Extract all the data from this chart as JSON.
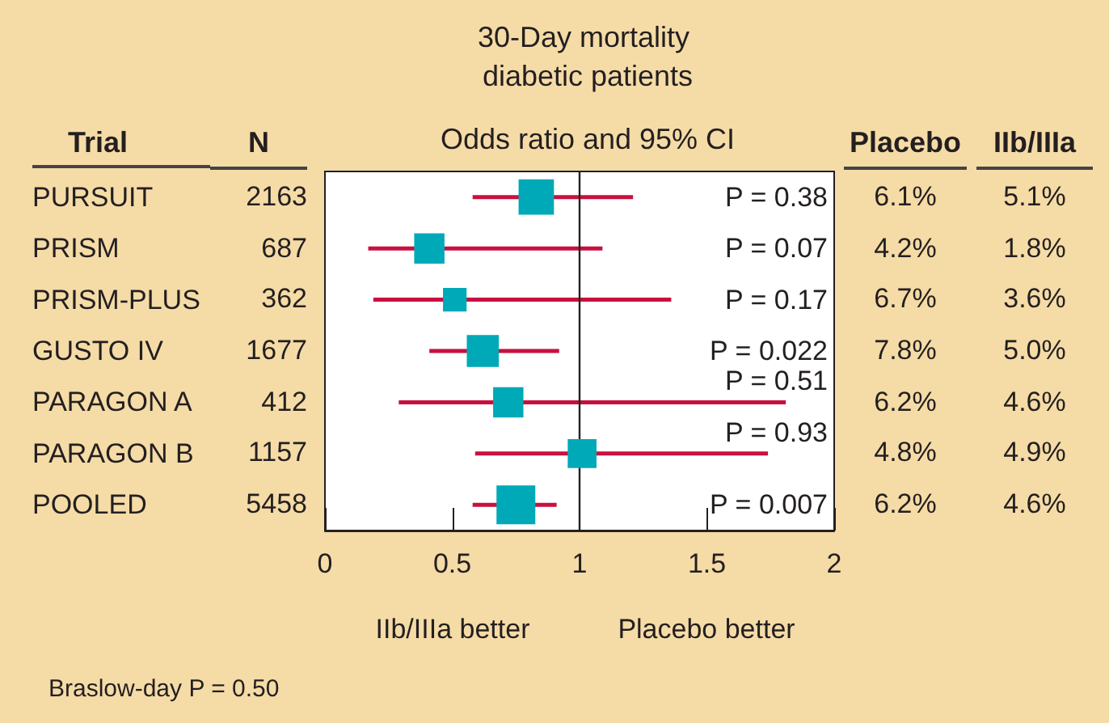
{
  "chart_data": [
    {
      "type": "bubble",
      "title": "30-Day mortality diabetic patients",
      "subtitle": "Odds ratio and 95% CI",
      "ylabel": "Trial",
      "orientation": "horizontal",
      "categories": [
        "PURSUIT",
        "PRISM",
        "PRISM-PLUS",
        "GUSTO IV",
        "PARAGON A",
        "PARAGON B",
        "POOLED"
      ],
      "series": [
        {
          "color": "#00a9b7",
          "values": [
            0.83,
            0.41,
            0.51,
            0.62,
            0.72,
            1.01,
            0.75
          ],
          "sizes": [
            0.83,
            0.61,
            0.37,
            0.68,
            0.61,
            0.55,
            1
          ],
          "errors": [
            [
              0.58,
              1.21
            ],
            [
              0.17,
              1.09
            ],
            [
              0.19,
              1.36
            ],
            [
              0.41,
              0.92
            ],
            [
              0.29,
              1.81
            ],
            [
              0.59,
              1.74
            ],
            [
              0.58,
              0.91
            ]
          ]
        }
      ],
      "marker": "square",
      "xlim": [
        0,
        2
      ],
      "xticks": [
        0,
        0.5,
        1,
        1.5,
        2
      ],
      "grid": false,
      "ref_lines": [
        {
          "axis": "x",
          "value": 1,
          "color": "#222222"
        }
      ],
      "annotations": [
        "P = 0.38",
        "P = 0.07",
        "P = 0.17",
        "P = 0.022",
        "P = 0.51",
        "P = 0.93",
        "P = 0.007",
        "IIb/IIIa better",
        "Placebo better",
        "Braslow-day P = 0.50"
      ]
    },
    {
      "type": "other",
      "title": "N",
      "annotations": [
        "2163",
        "687",
        "362",
        "1677",
        "412",
        "1157",
        "5458"
      ]
    },
    {
      "type": "other",
      "title": "Placebo",
      "annotations": [
        "6.1%",
        "4.2%",
        "6.7%",
        "7.8%",
        "6.2%",
        "4.8%",
        "6.2%"
      ]
    },
    {
      "type": "other",
      "title": "IIb/IIIa",
      "annotations": [
        "5.1%",
        "1.8%",
        "3.6%",
        "5.0%",
        "4.6%",
        "4.9%",
        "4.6%"
      ]
    }
  ]
}
